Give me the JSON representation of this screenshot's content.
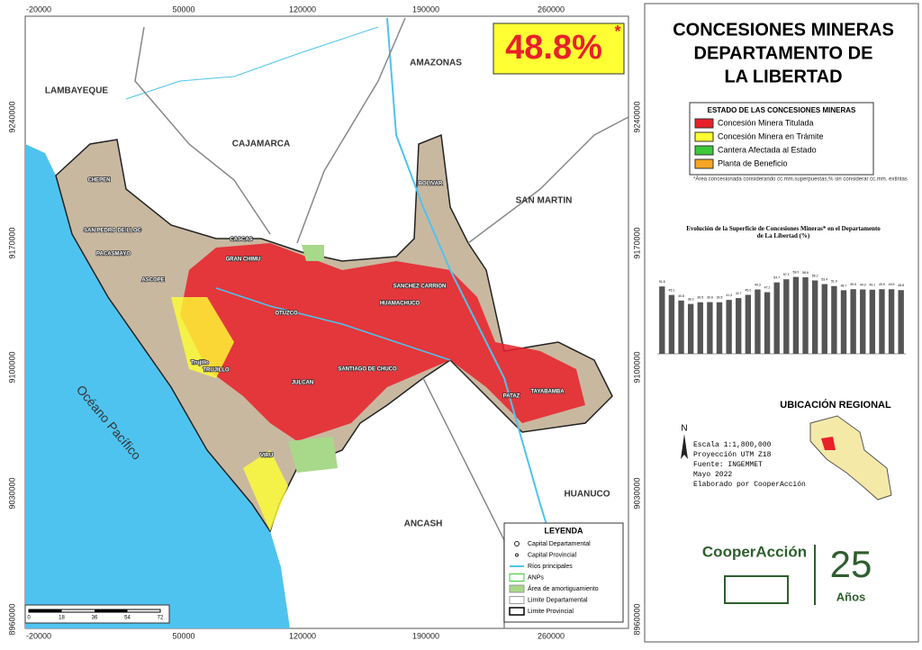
{
  "title_lines": [
    "CONCESIONES MINERAS",
    "DEPARTAMENTO DE",
    "LA LIBERTAD"
  ],
  "percent": "48.8%",
  "percent_mark": "*",
  "status_legend": {
    "title": "ESTADO DE LAS CONCESIONES MINERAS",
    "items": [
      {
        "label": "Concesión Minera Titulada",
        "color": "#e8202a"
      },
      {
        "label": "Concesión Minera en Trámite",
        "color": "#ffff33"
      },
      {
        "label": "Cantera Afectada al Estado",
        "color": "#3cc83a"
      },
      {
        "label": "Planta de Beneficio",
        "color": "#f5a623"
      }
    ]
  },
  "footnote": "*Área concesionada considerando cc.mm.superpuestas,% sin considerar cc.mm. extintas",
  "chart_data": {
    "type": "bar",
    "title": "Evolución de la Superficie de Concesiones Mineras* en el Departamento de La Libertad (%)",
    "categories": [
      null,
      null,
      null,
      null,
      null,
      null,
      null,
      null,
      null,
      null,
      null,
      null,
      null,
      null,
      null,
      null,
      null,
      null,
      null,
      null,
      null,
      null,
      null,
      null,
      null,
      null
    ],
    "values": [
      51.6,
      45.1,
      40.8,
      38.2,
      39.5,
      39.6,
      39.5,
      41.3,
      42.7,
      45.2,
      49.3,
      47.2,
      54.7,
      57.1,
      58.9,
      58.6,
      56.2,
      53.4,
      51.9,
      48.7,
      49.5,
      49.3,
      49.1,
      49.5,
      49.5,
      48.8
    ],
    "color": "#555555"
  },
  "regional_title": "UBICACIÓN REGIONAL",
  "north": "N",
  "map_info": [
    "Escala 1:1,800,000",
    "Proyección UTM Z18",
    "Fuente: INGEMMET",
    "Mayo 2022",
    "Elaborado por CooperAcción"
  ],
  "map": {
    "x_coords": [
      "-20000",
      "50000",
      "120000",
      "190000",
      "260000"
    ],
    "y_coords": [
      "9240000",
      "9170000",
      "9100000",
      "9030000",
      "8960000"
    ],
    "regions": [
      "LAMBAYEQUE",
      "CAJAMARCA",
      "AMAZONAS",
      "SAN MARTIN",
      "HUANUCO",
      "ANCASH",
      "Océano Pacífico"
    ],
    "provinces": [
      "CHEPEN",
      "PACASMAYO",
      "ASCOPE",
      "GRAN CHIMU",
      "OTUZCO",
      "TRUJILLO",
      "JULCAN",
      "VIRU",
      "SANTIAGO DE CHUCO",
      "SANCHEZ CARRION",
      "BOLIVAR",
      "PATAZ"
    ],
    "cities": [
      "Trujillo",
      "SAN PEDRO DE LLOC",
      "CASCAS",
      "HUAMACHUCO",
      "TAYABAMBA"
    ]
  },
  "leyenda": {
    "title": "LEYENDA",
    "items": [
      "Capital Departamental",
      "Capital Provincial",
      "Ríos principales",
      "ANPs",
      "Área de amortiguamiento",
      "Limite Departamental",
      "Limite Provincial"
    ]
  },
  "scalebar": [
    "0",
    "18",
    "36",
    "54",
    "72"
  ],
  "logo": {
    "name": "CooperAcción",
    "number": "25",
    "word": "Años"
  }
}
